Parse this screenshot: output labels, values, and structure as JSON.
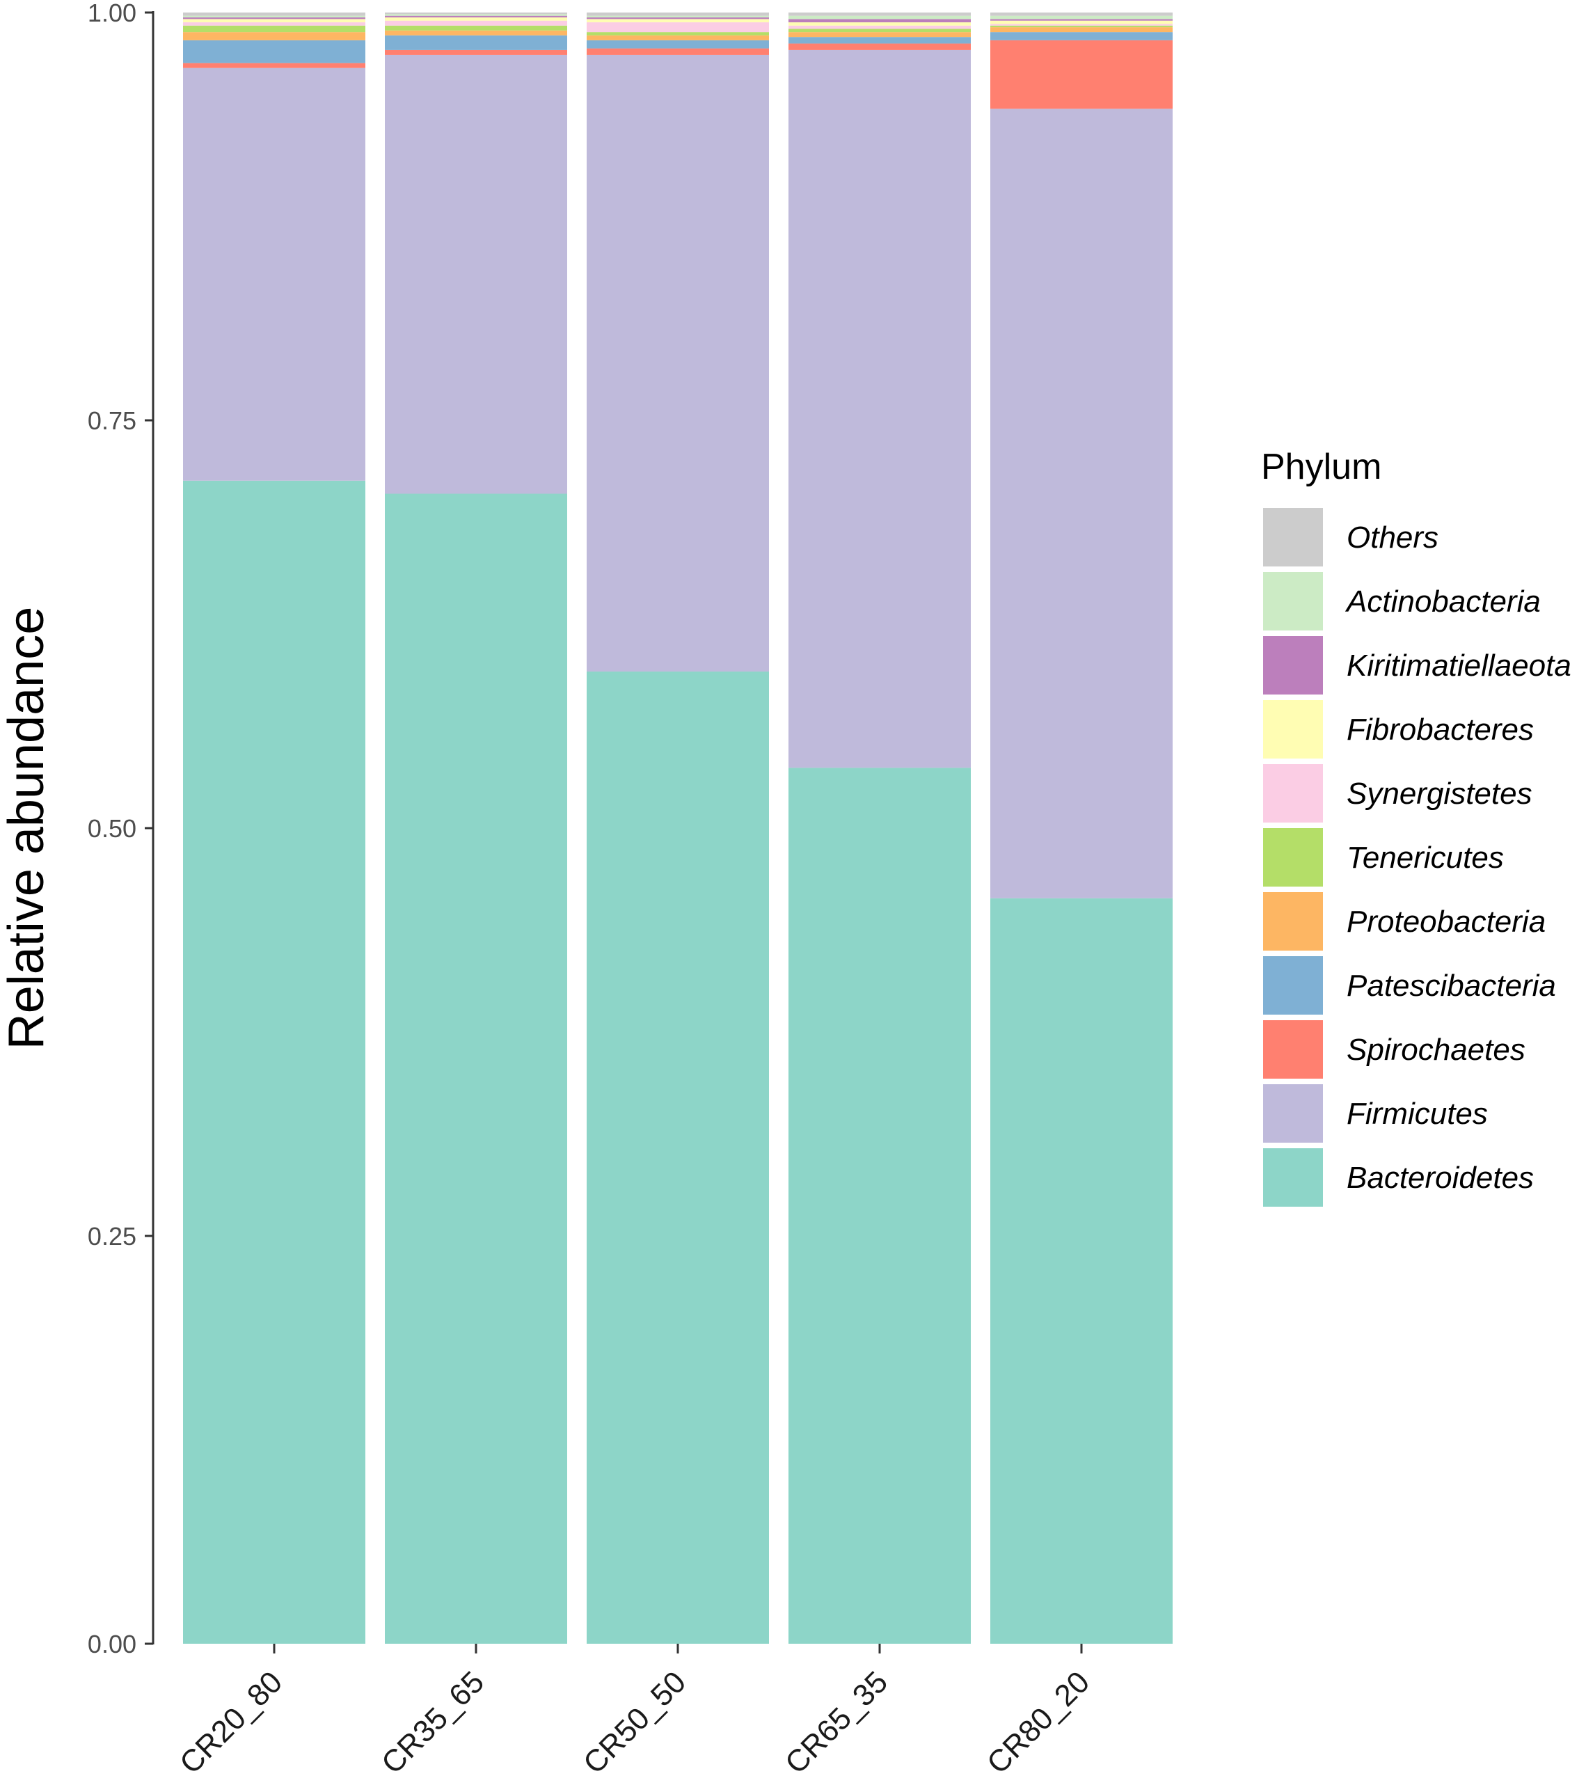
{
  "chart_data": {
    "type": "bar",
    "stacked": true,
    "title": "",
    "xlabel": "",
    "ylabel": "Relative abundance",
    "ylim": [
      0,
      1
    ],
    "yticks": [
      "0.00",
      "0.25",
      "0.50",
      "0.75",
      "1.00"
    ],
    "ytick_values": [
      0,
      0.25,
      0.5,
      0.75,
      1.0
    ],
    "categories": [
      "CR20_80",
      "CR35_65",
      "CR50_50",
      "CR65_35",
      "CR80_20"
    ],
    "legend_title": "Phylum",
    "legend_position": "right",
    "series": [
      {
        "name": "Bacteroidetes",
        "color": "#8DD5C8",
        "values": [
          0.713,
          0.705,
          0.596,
          0.537,
          0.457
        ]
      },
      {
        "name": "Firmicutes",
        "color": "#BFBADB",
        "values": [
          0.253,
          0.269,
          0.378,
          0.44,
          0.484
        ]
      },
      {
        "name": "Spirochaetes",
        "color": "#FF8070",
        "values": [
          0.003,
          0.003,
          0.004,
          0.004,
          0.042
        ]
      },
      {
        "name": "Patescibacteria",
        "color": "#7FB0D4",
        "values": [
          0.014,
          0.009,
          0.005,
          0.004,
          0.005
        ]
      },
      {
        "name": "Proteobacteria",
        "color": "#FDB663",
        "values": [
          0.005,
          0.003,
          0.003,
          0.003,
          0.003
        ]
      },
      {
        "name": "Tenericutes",
        "color": "#B4DE68",
        "values": [
          0.004,
          0.003,
          0.002,
          0.002,
          0.001
        ]
      },
      {
        "name": "Synergistetes",
        "color": "#FBCDE4",
        "values": [
          0.002,
          0.003,
          0.006,
          0.002,
          0.001
        ]
      },
      {
        "name": "Fibrobacteres",
        "color": "#FFFDB3",
        "values": [
          0.002,
          0.002,
          0.002,
          0.002,
          0.002
        ]
      },
      {
        "name": "Kiritimatiellaeota",
        "color": "#BC7FBC",
        "values": [
          0.001,
          0.001,
          0.001,
          0.002,
          0.001
        ]
      },
      {
        "name": "Actinobacteria",
        "color": "#CCEBC5",
        "values": [
          0.001,
          0.001,
          0.001,
          0.002,
          0.002
        ]
      },
      {
        "name": "Others",
        "color": "#CCCCCC",
        "values": [
          0.002,
          0.001,
          0.002,
          0.002,
          0.002
        ]
      }
    ]
  }
}
